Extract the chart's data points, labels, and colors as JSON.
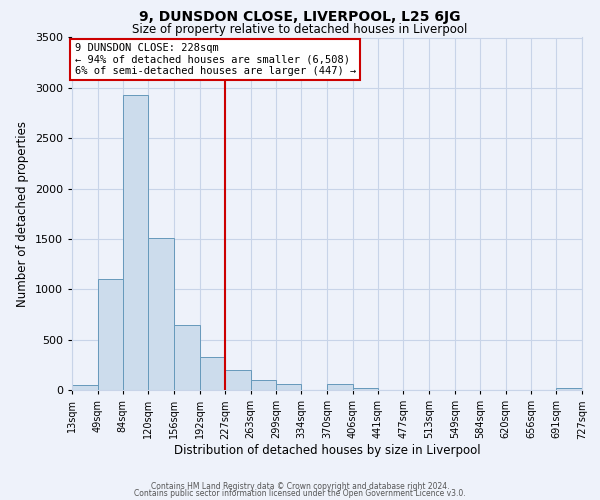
{
  "title": "9, DUNSDON CLOSE, LIVERPOOL, L25 6JG",
  "subtitle": "Size of property relative to detached houses in Liverpool",
  "xlabel": "Distribution of detached houses by size in Liverpool",
  "ylabel": "Number of detached properties",
  "bin_edges": [
    13,
    49,
    84,
    120,
    156,
    192,
    227,
    263,
    299,
    334,
    370,
    406,
    441,
    477,
    513,
    549,
    584,
    620,
    656,
    691,
    727
  ],
  "bar_heights": [
    50,
    1100,
    2930,
    1510,
    650,
    330,
    200,
    95,
    55,
    0,
    55,
    20,
    0,
    0,
    0,
    0,
    0,
    0,
    0,
    20
  ],
  "bar_color": "#ccdcec",
  "bar_edge_color": "#6699bb",
  "vline_x": 227,
  "vline_color": "#cc0000",
  "annotation_title": "9 DUNSDON CLOSE: 228sqm",
  "annotation_line1": "← 94% of detached houses are smaller (6,508)",
  "annotation_line2": "6% of semi-detached houses are larger (447) →",
  "tick_labels": [
    "13sqm",
    "49sqm",
    "84sqm",
    "120sqm",
    "156sqm",
    "192sqm",
    "227sqm",
    "263sqm",
    "299sqm",
    "334sqm",
    "370sqm",
    "406sqm",
    "441sqm",
    "477sqm",
    "513sqm",
    "549sqm",
    "584sqm",
    "620sqm",
    "656sqm",
    "691sqm",
    "727sqm"
  ],
  "ylim": [
    0,
    3500
  ],
  "yticks": [
    0,
    500,
    1000,
    1500,
    2000,
    2500,
    3000,
    3500
  ],
  "footer_line1": "Contains HM Land Registry data © Crown copyright and database right 2024.",
  "footer_line2": "Contains public sector information licensed under the Open Government Licence v3.0.",
  "bg_color": "#eef2fa",
  "grid_color": "#c8d4e8"
}
